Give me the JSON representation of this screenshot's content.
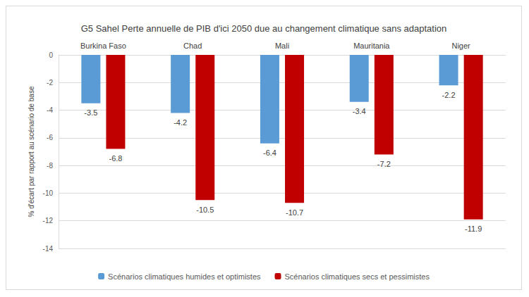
{
  "chart_data": {
    "type": "bar",
    "title": "G5 Sahel Perte annuelle de PIB d'ici 2050 due au changement climatique sans adaptation",
    "y_label": "% d'écart par rapport au scénario de base",
    "categories": [
      "Burkina Faso",
      "Chad",
      "Mali",
      "Mauritania",
      "Niger"
    ],
    "series": [
      {
        "name": "Scénarios climatiques humides et optimistes",
        "color": "#5b9bd5",
        "values": [
          -3.5,
          -4.2,
          -6.4,
          -3.4,
          -2.2
        ]
      },
      {
        "name": "Scénarios climatiques secs et pessimistes",
        "color": "#c00000",
        "values": [
          -6.8,
          -10.5,
          -10.7,
          -7.2,
          -11.9
        ]
      }
    ],
    "ylim": [
      -14,
      0
    ],
    "yticks": [
      -14,
      -12,
      -10,
      -8,
      -6,
      -4,
      -2,
      0
    ],
    "grid": true,
    "legend": "bottom",
    "data_labels": true
  }
}
